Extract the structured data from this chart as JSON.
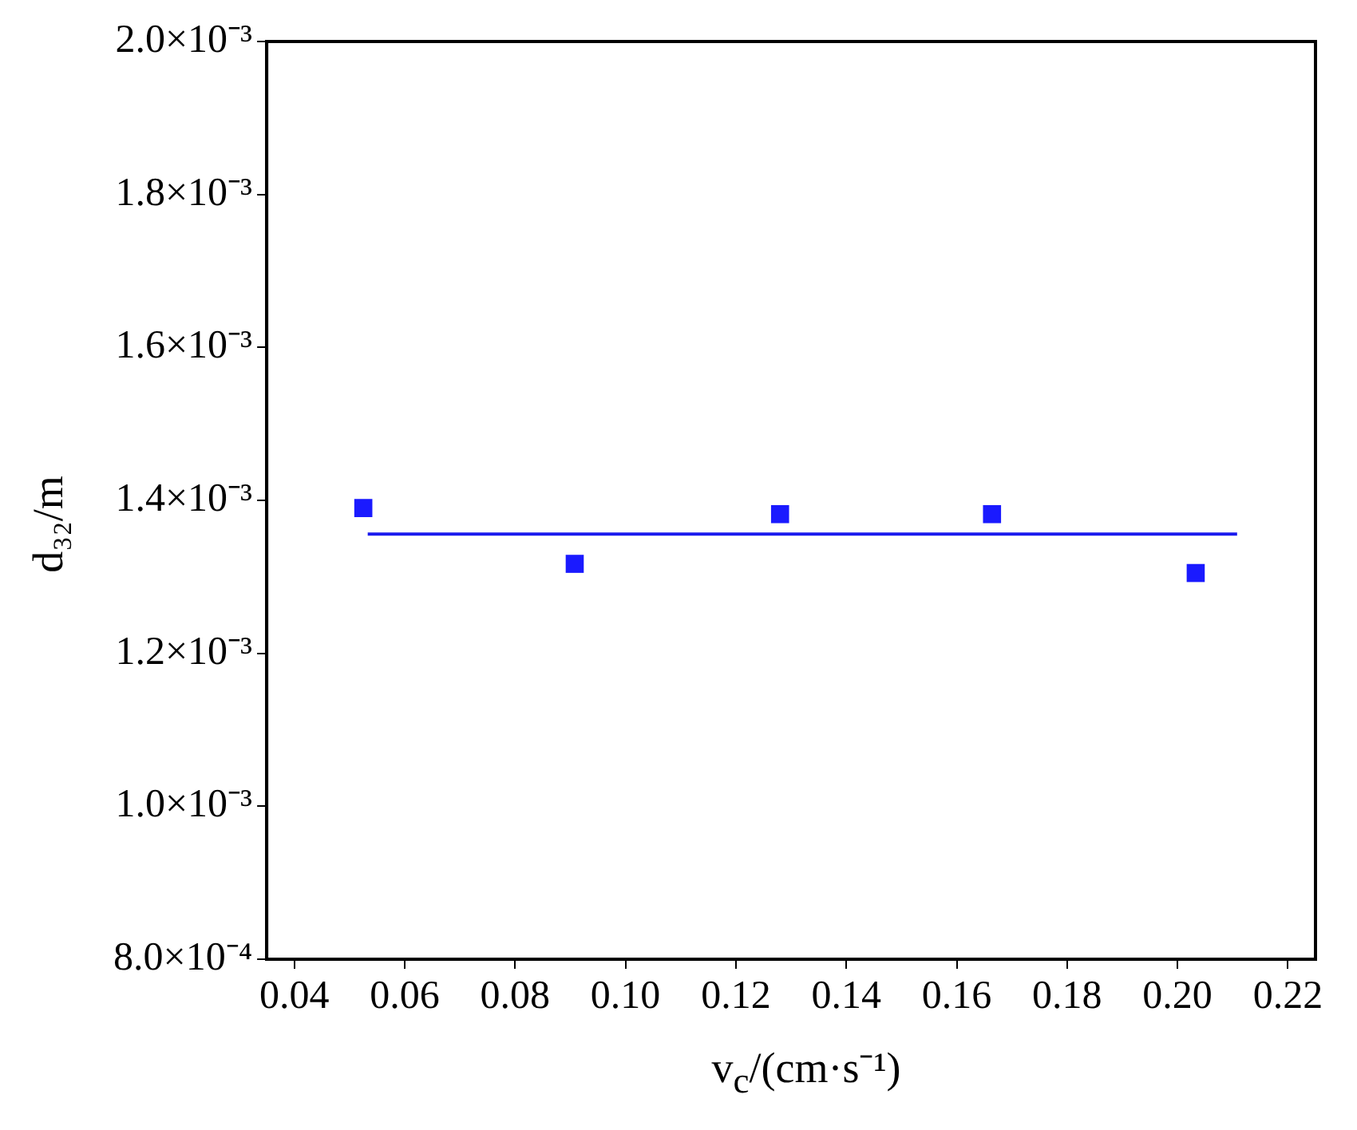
{
  "chart_data": {
    "type": "scatter",
    "xlabel": "v$_{c}$/(cm·s⁻¹)",
    "ylabel": "d₃₂/m",
    "series": [
      {
        "color": "#1a1aff",
        "marker": "square",
        "x": [
          0.0525,
          0.0908,
          0.128,
          0.1664,
          0.2033
        ],
        "values": [
          0.00139,
          0.001317,
          0.001382,
          0.001382,
          0.001305
        ]
      },
      {
        "type": "line",
        "color": "#1a1aee",
        "marker": "none",
        "line_style": "solid",
        "x": [
          0.0533,
          0.2108
        ],
        "values": [
          0.001356,
          0.001356
        ]
      }
    ],
    "xlim": [
      0.035,
      0.225
    ],
    "xticks": [
      0.04,
      0.06,
      0.08,
      {
        "value": 0.1,
        "label": "0.10"
      },
      0.12,
      0.14,
      0.16,
      0.18,
      {
        "value": 0.2,
        "label": "0.20"
      },
      0.22
    ],
    "ylim": [
      0.0008,
      0.002
    ],
    "yticks": [
      {
        "value": 0.0008,
        "label": "8.0×10⁻⁴"
      },
      {
        "value": 0.001,
        "label": "1.0×10⁻³"
      },
      {
        "value": 0.0012,
        "label": "1.2×10⁻³"
      },
      {
        "value": 0.0014,
        "label": "1.4×10⁻³"
      },
      {
        "value": 0.0016,
        "label": "1.6×10⁻³"
      },
      {
        "value": 0.0018,
        "label": "1.8×10⁻³"
      },
      {
        "value": 0.002,
        "label": "2.0×10⁻³"
      }
    ],
    "grid": false,
    "legend": false
  }
}
